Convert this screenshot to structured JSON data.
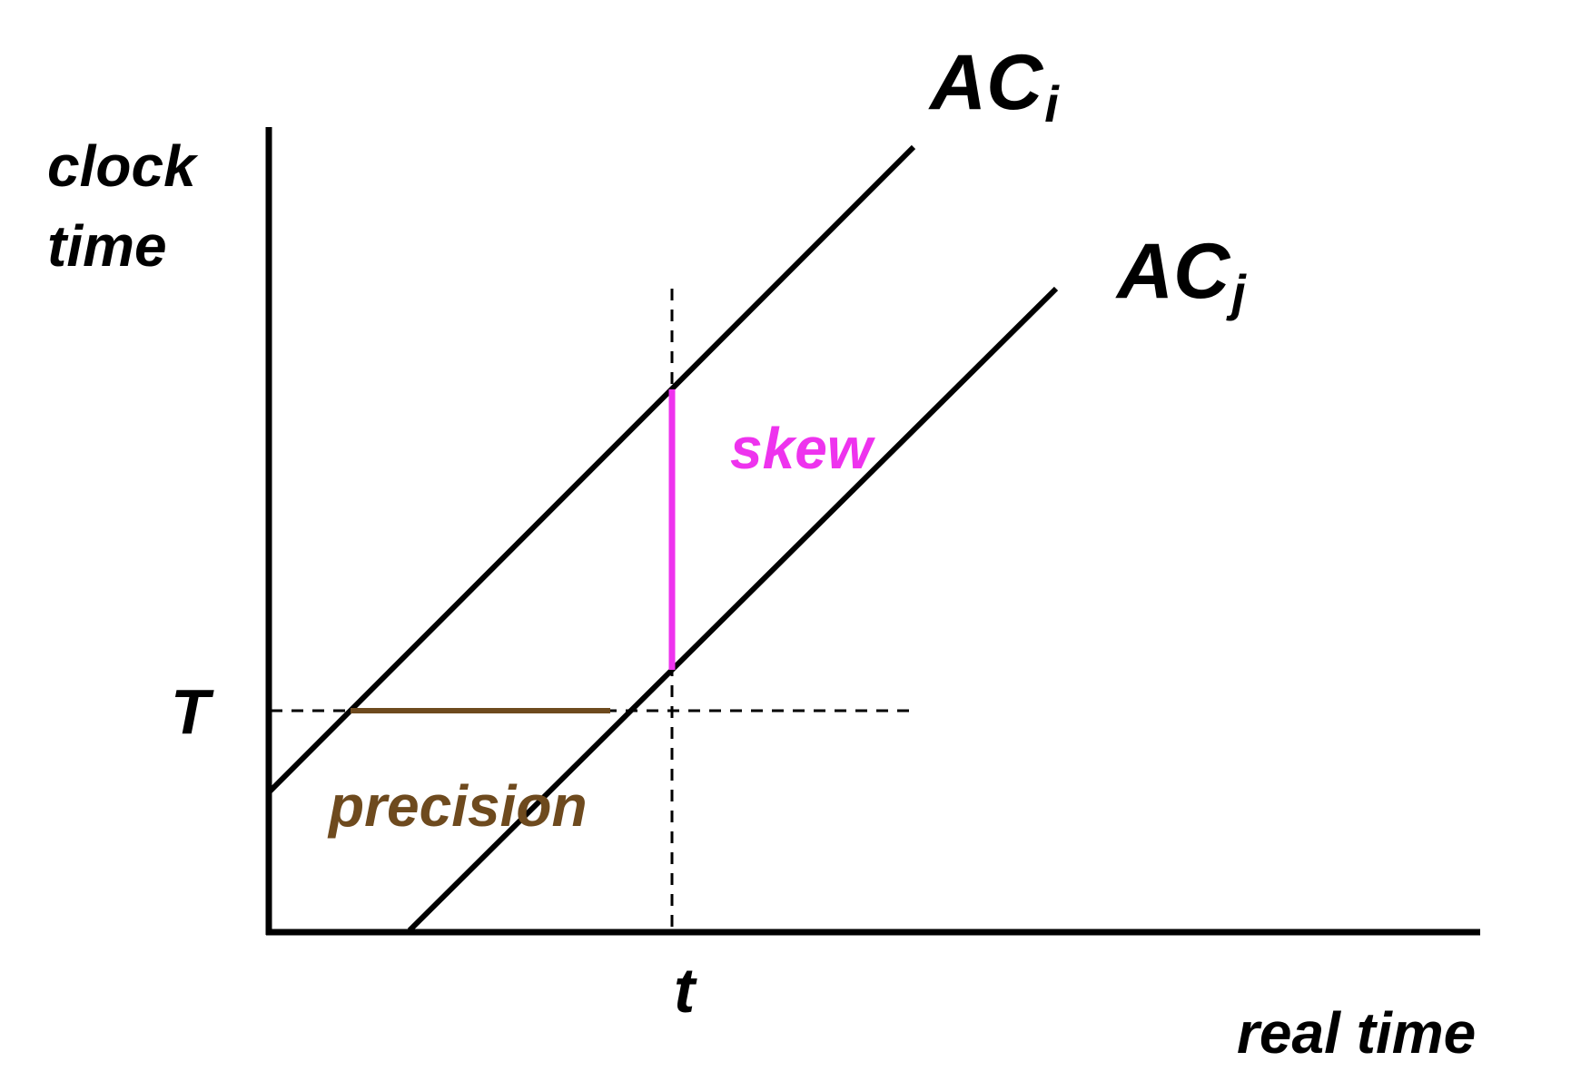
{
  "axes": {
    "y_label_line1": "clock",
    "y_label_line2": "time",
    "x_label": "real time",
    "y_marker": "T",
    "x_marker": "t"
  },
  "clocks": [
    {
      "name": "AC",
      "subscript": "i"
    },
    {
      "name": "AC",
      "subscript": "j"
    }
  ],
  "annotations": {
    "skew": "skew",
    "precision": "precision"
  },
  "colors": {
    "lines": "#000000",
    "skew": "#ee33ee",
    "precision": "#6e4a1e"
  }
}
